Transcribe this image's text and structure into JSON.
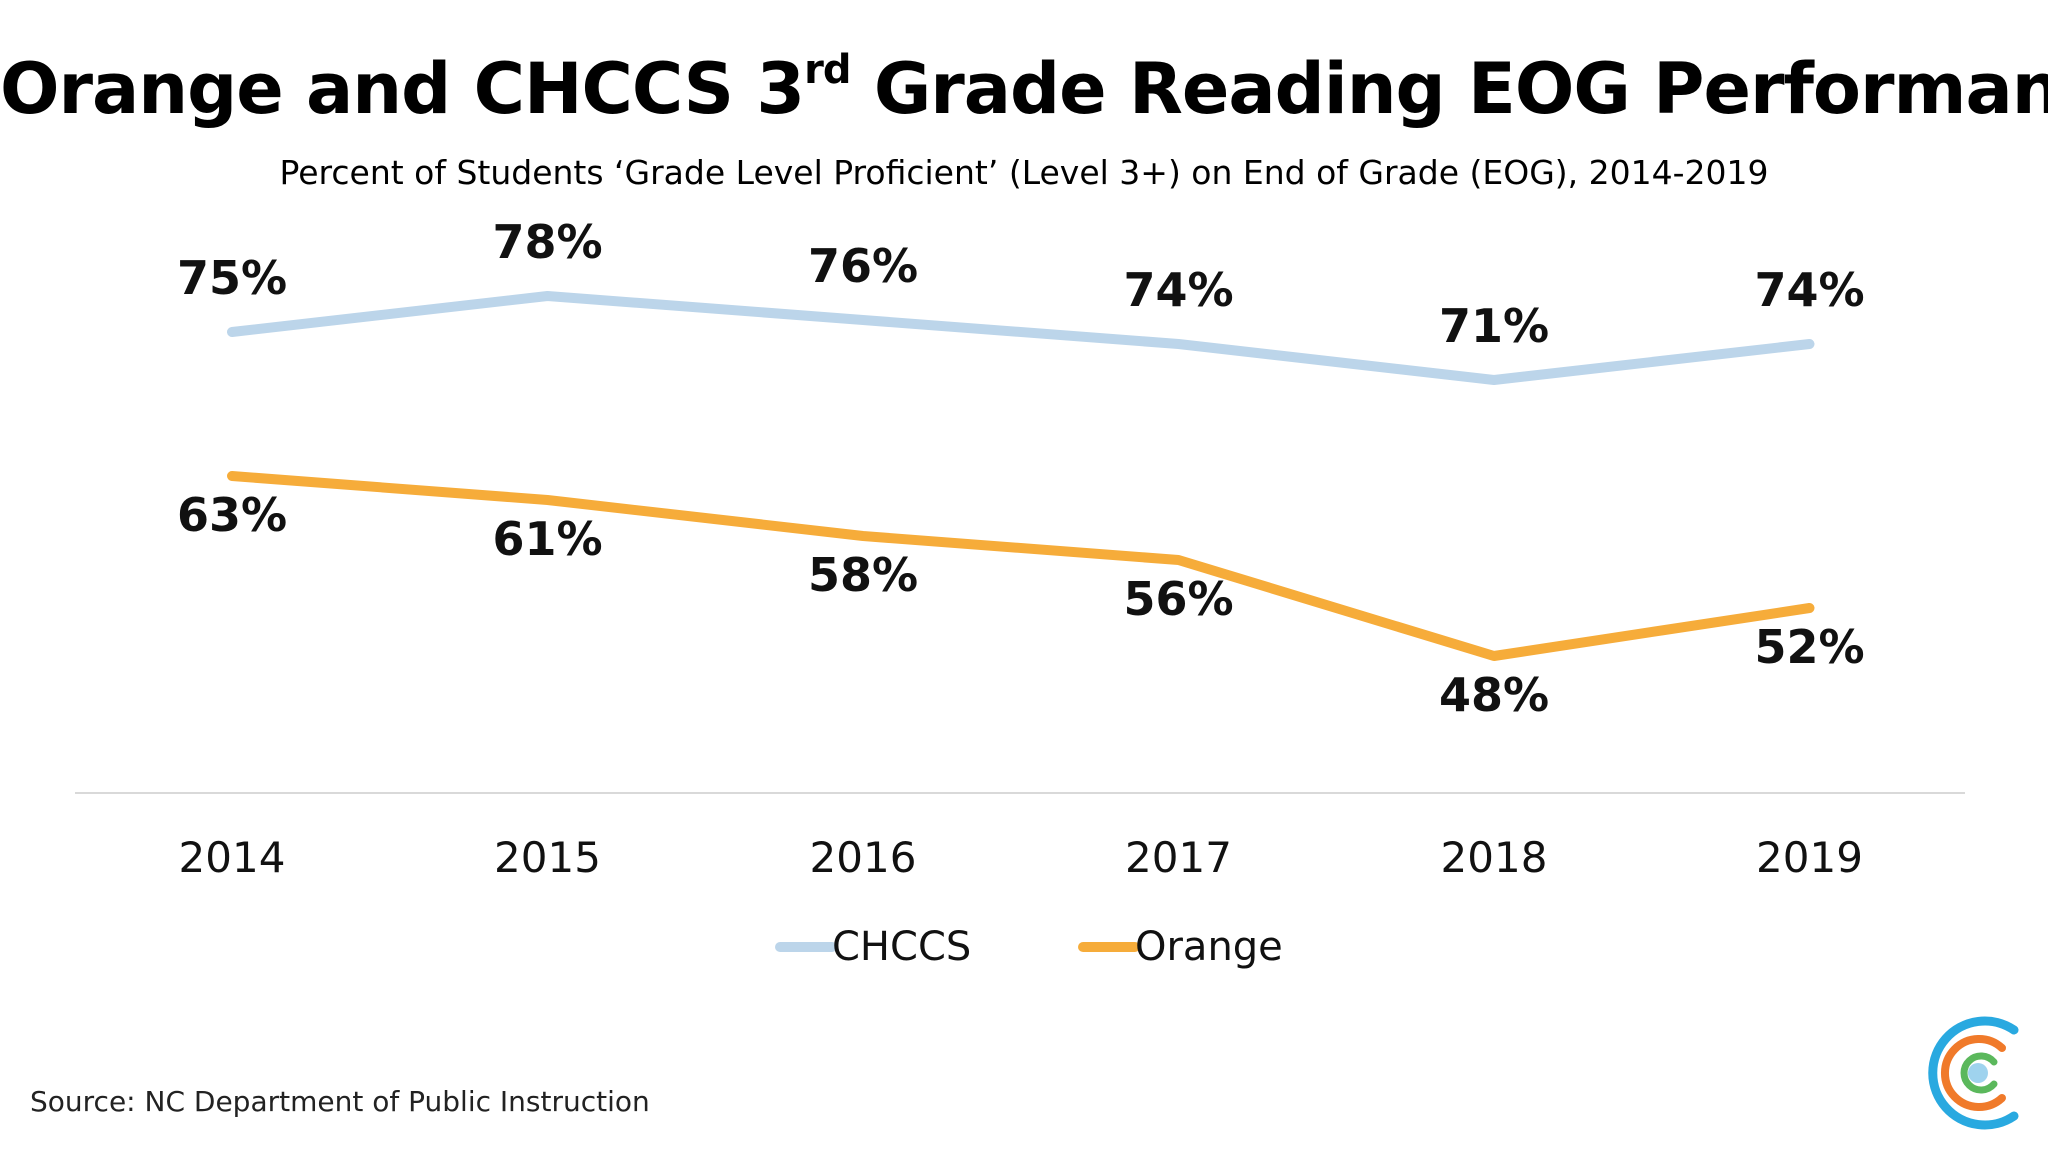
{
  "title": {
    "main_before": "Orange and CHCCS 3",
    "superscript": "rd",
    "main_after": " Grade Reading EOG Performance",
    "subtitle": "Percent of Students ‘Grade Level Proficient’ (Level 3+) on End of Grade (EOG), 2014-2019"
  },
  "source": "Source: NC Department of Public Instruction",
  "chart_data": {
    "type": "line",
    "categories": [
      "2014",
      "2015",
      "2016",
      "2017",
      "2018",
      "2019"
    ],
    "series": [
      {
        "name": "CHCCS",
        "values": [
          75,
          78,
          76,
          74,
          71,
          74
        ],
        "labels": [
          "75%",
          "78%",
          "76%",
          "74%",
          "71%",
          "74%"
        ],
        "color": "#bcd5ea"
      },
      {
        "name": "Orange",
        "values": [
          63,
          61,
          58,
          56,
          48,
          52
        ],
        "labels": [
          "63%",
          "61%",
          "58%",
          "56%",
          "48%",
          "52%"
        ],
        "color": "#f6ac3a"
      }
    ],
    "y_axis_visible": false,
    "gridlines": false,
    "legend_position": "bottom"
  },
  "colors": {
    "axis": "#d9d9d9",
    "logo_blue": "#29a9e0",
    "logo_orange": "#f07a2a",
    "logo_green": "#5bb85c",
    "logo_dot": "#9fd3ee"
  },
  "logo": {
    "icon": "concentric-c-logo-icon"
  }
}
